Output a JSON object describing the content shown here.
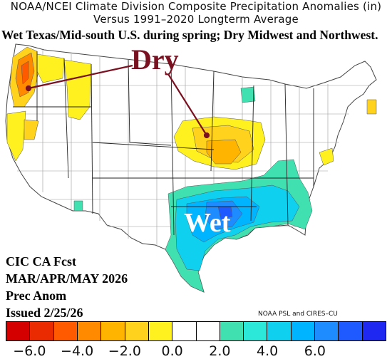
{
  "map": {
    "title_line1": "NOAA/NCEI Climate Division Composite Precipitation Anomalies (in)",
    "title_line2": "Versus 1991–2020 Longterm Average",
    "headline": "Wet Texas/Mid-south U.S. during spring; Dry Midwest and Northwest.",
    "dry_label": "Dry",
    "wet_label": "Wet",
    "forecast_lines": [
      "CIC CA Fcst",
      "MAR/APR/MAY 2026",
      "Prec Anom",
      "Issued 2/25/26"
    ],
    "credit": "NOAA PSL and CIRES–CU"
  },
  "colorbar": {
    "colors": [
      "#d40000",
      "#ea2a00",
      "#ff5a00",
      "#ff8a00",
      "#ffb400",
      "#ffd21e",
      "#fff020",
      "#ffffff",
      "#ffffff",
      "#40e0b0",
      "#2ce8d8",
      "#10d0f0",
      "#00b4ff",
      "#1e8cff",
      "#1e5aff",
      "#1e28f0"
    ],
    "tick_labels": [
      "−6.0",
      "−4.0",
      "−2.0",
      "0.0",
      "2.0",
      "4.0",
      "6.0"
    ]
  },
  "legend_colors": {
    "dry_light": "#fff020",
    "dry_mid": "#ffd21e",
    "dry_strong": "#ffb400",
    "dry_max": "#ff8a00",
    "wet_light": "#40e0b0",
    "wet_mid": "#10d0f0",
    "wet_strong": "#00b4ff",
    "wet_max": "#1e8cff"
  }
}
